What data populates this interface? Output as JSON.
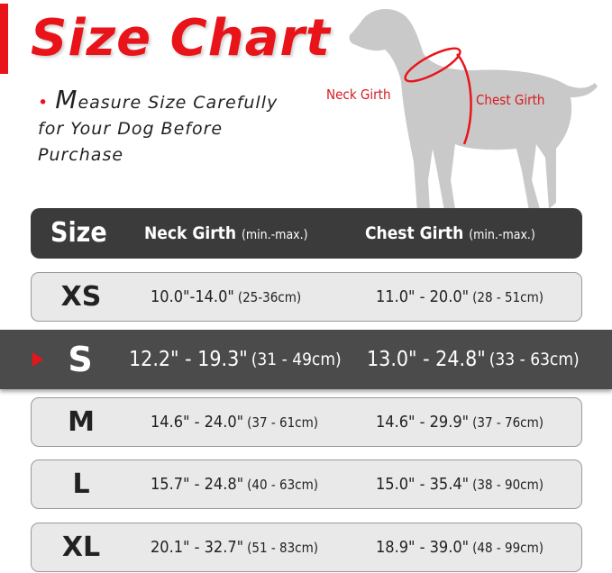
{
  "title": "Size Chart",
  "note": {
    "first_letter": "M",
    "rest": "easure Size Carefully for Your Dog Before Purchase"
  },
  "diagram": {
    "neck_label": "Neck Girth",
    "chest_label": "Chest Girth",
    "accent": "#e8141a"
  },
  "header": {
    "size": "Size",
    "neck": "Neck Girth",
    "neck_unit": "(min.-max.)",
    "chest": "Chest Girth",
    "chest_unit": "(min.-max.)"
  },
  "rows": [
    {
      "size": "XS",
      "neck_in": "10.0\"-14.0\"",
      "neck_cm": "(25-36cm)",
      "chest_in": "11.0\" - 20.0\"",
      "chest_cm": "(28 - 51cm)"
    },
    {
      "size": "S",
      "neck_in": "12.2\" - 19.3\"",
      "neck_cm": "(31 - 49cm)",
      "chest_in": "13.0\" - 24.8\"",
      "chest_cm": "(33 - 63cm)",
      "selected": true
    },
    {
      "size": "M",
      "neck_in": "14.6\" - 24.0\"",
      "neck_cm": "(37 - 61cm)",
      "chest_in": "14.6\" - 29.9\"",
      "chest_cm": "(37 - 76cm)"
    },
    {
      "size": "L",
      "neck_in": "15.7\" - 24.8\"",
      "neck_cm": "(40 - 63cm)",
      "chest_in": "15.0\" - 35.4\"",
      "chest_cm": "(38 - 90cm)"
    },
    {
      "size": "XL",
      "neck_in": "20.1\" - 32.7\"",
      "neck_cm": "(51 - 83cm)",
      "chest_in": "18.9\" - 39.0\"",
      "chest_cm": "(48 - 99cm)"
    }
  ]
}
